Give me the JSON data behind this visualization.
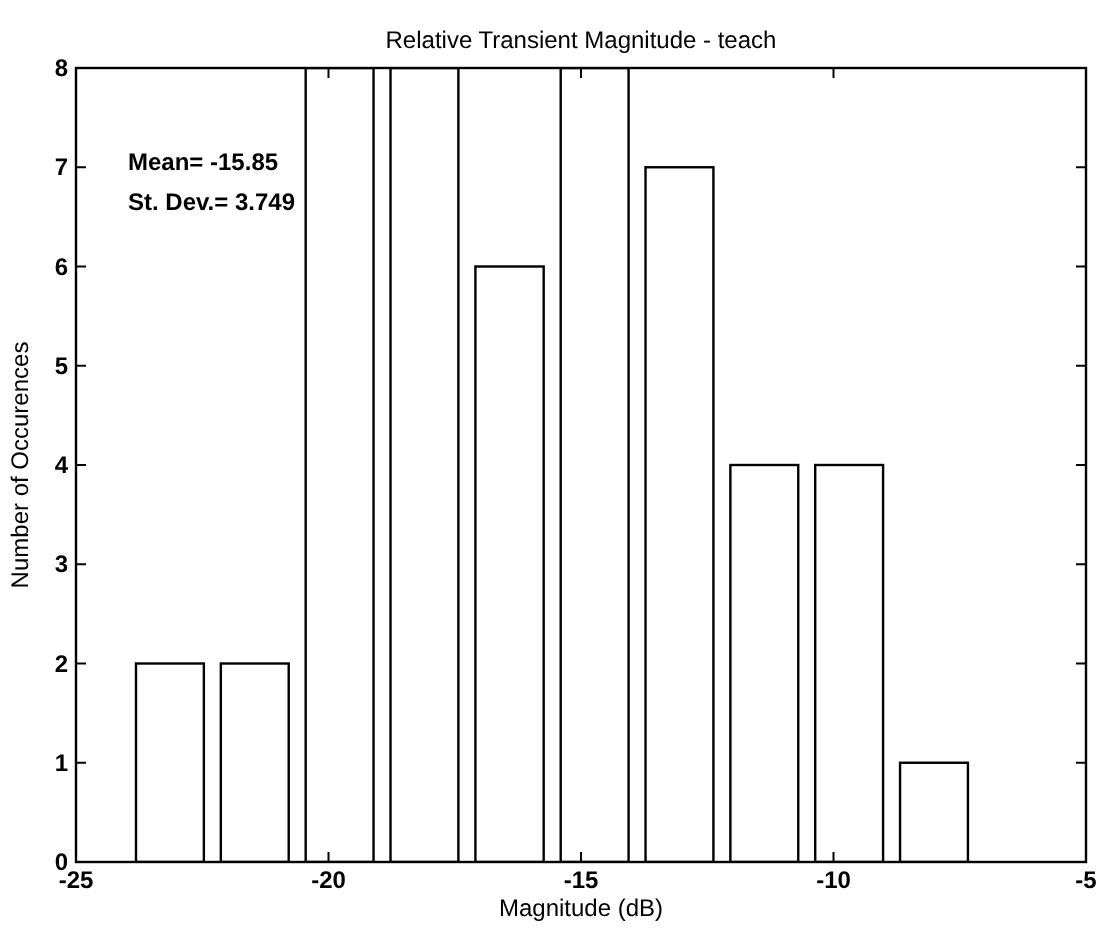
{
  "chart_data": {
    "type": "histogram",
    "title": "Relative Transient Magnitude - teach",
    "xlabel": "Magnitude (dB)",
    "ylabel": "Number of Occurences",
    "annotations": [
      "Mean= -15.85",
      "St. Dev.= 3.749"
    ],
    "bins": [
      -23.98,
      -22.3,
      -20.62,
      -18.94,
      -17.26,
      -15.57,
      -13.89,
      -12.21,
      -10.53,
      -8.85,
      -7.17
    ],
    "values": [
      2,
      2,
      8,
      8,
      6,
      8,
      7,
      4,
      4,
      1
    ],
    "color": "#ffffff",
    "xlim": [
      -25,
      -5
    ],
    "xticks": [
      -25,
      -20,
      -15,
      -10,
      -5
    ],
    "ylim": [
      0,
      8
    ],
    "yticks": [
      0,
      1,
      2,
      3,
      4,
      5,
      6,
      7,
      8
    ],
    "grid": false
  }
}
